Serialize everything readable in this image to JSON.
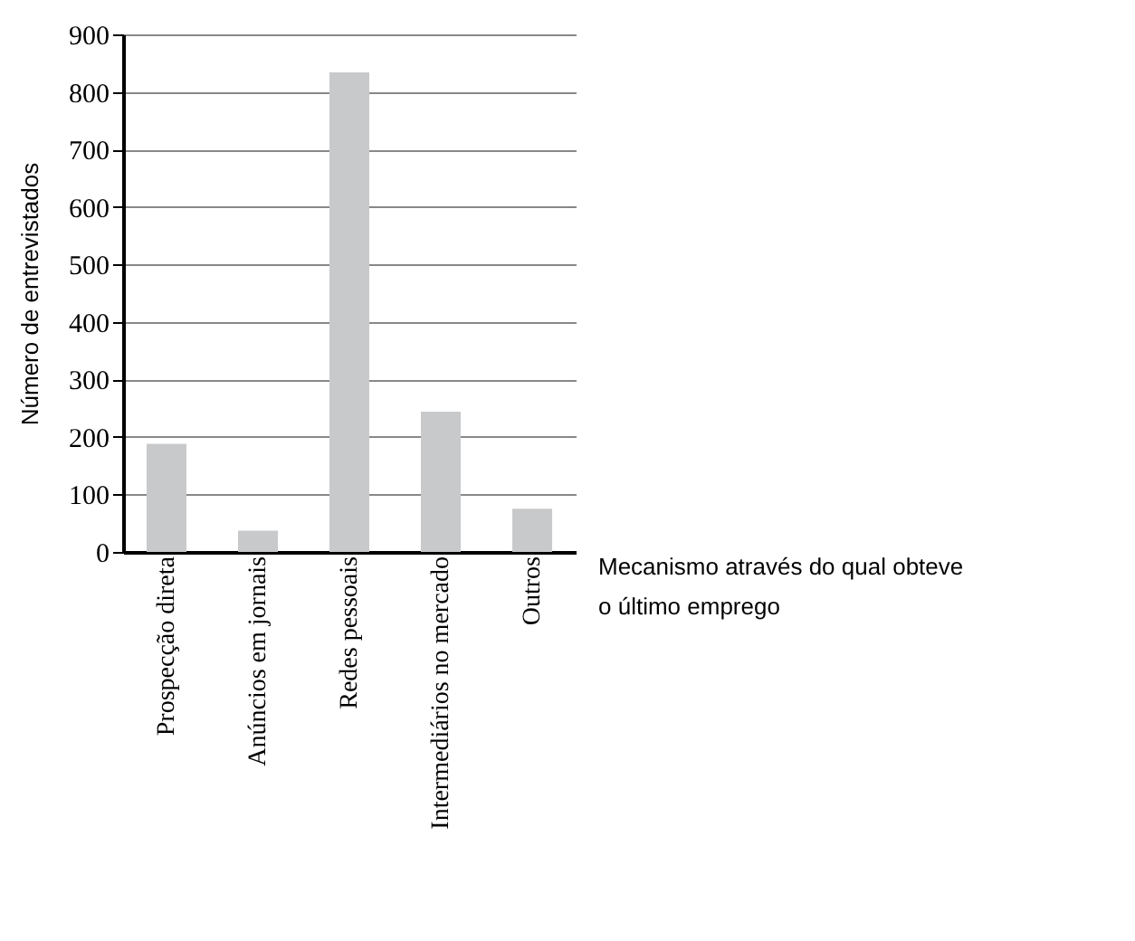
{
  "chart_data": {
    "type": "bar",
    "xlabel": "Mecanismo através do qual obteve o último emprego",
    "ylabel": "Número de entrevistados",
    "categories": [
      "Prospecção direta",
      "Anúncios em jornais",
      "Redes pessoais",
      "Intermediários no mercado",
      "Outros"
    ],
    "values": [
      188,
      37,
      834,
      244,
      75
    ],
    "color": "#c8c9cb",
    "ylim": [
      0,
      900
    ],
    "yticks": [
      0,
      100,
      200,
      300,
      400,
      500,
      600,
      700,
      800,
      900
    ],
    "grid": "y"
  }
}
